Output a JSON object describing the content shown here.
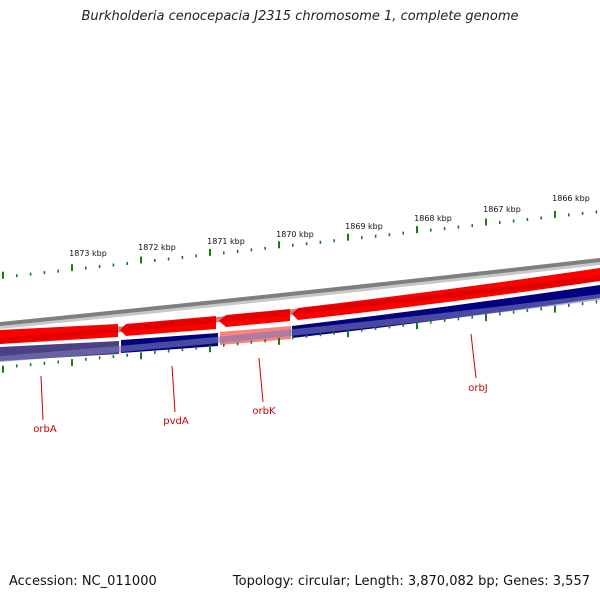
{
  "title": "Burkholderia cenocepacia J2315 chromosome 1, complete genome",
  "accession": "Accession: NC_011000",
  "summary": "Topology: circular; Length: 3,870,082 bp; Genes: 3,557",
  "colors": {
    "forward_strand": "#ff0000",
    "reverse_strand": "#000080",
    "highlight_forward": "#ff8080",
    "highlight_reverse": "#4b3f86",
    "backbone": "#7f7f7f",
    "ticks": "#1a7a1a",
    "gene_label": "#cc0000"
  },
  "ruler": {
    "labels": [
      "1873 kbp",
      "1872 kbp",
      "1871 kbp",
      "1870 kbp",
      "1869 kbp",
      "1868 kbp",
      "1867 kbp",
      "1866 kbp"
    ]
  },
  "genes": [
    {
      "name": "orbA"
    },
    {
      "name": "pvdA"
    },
    {
      "name": "orbK"
    },
    {
      "name": "orbJ"
    }
  ]
}
